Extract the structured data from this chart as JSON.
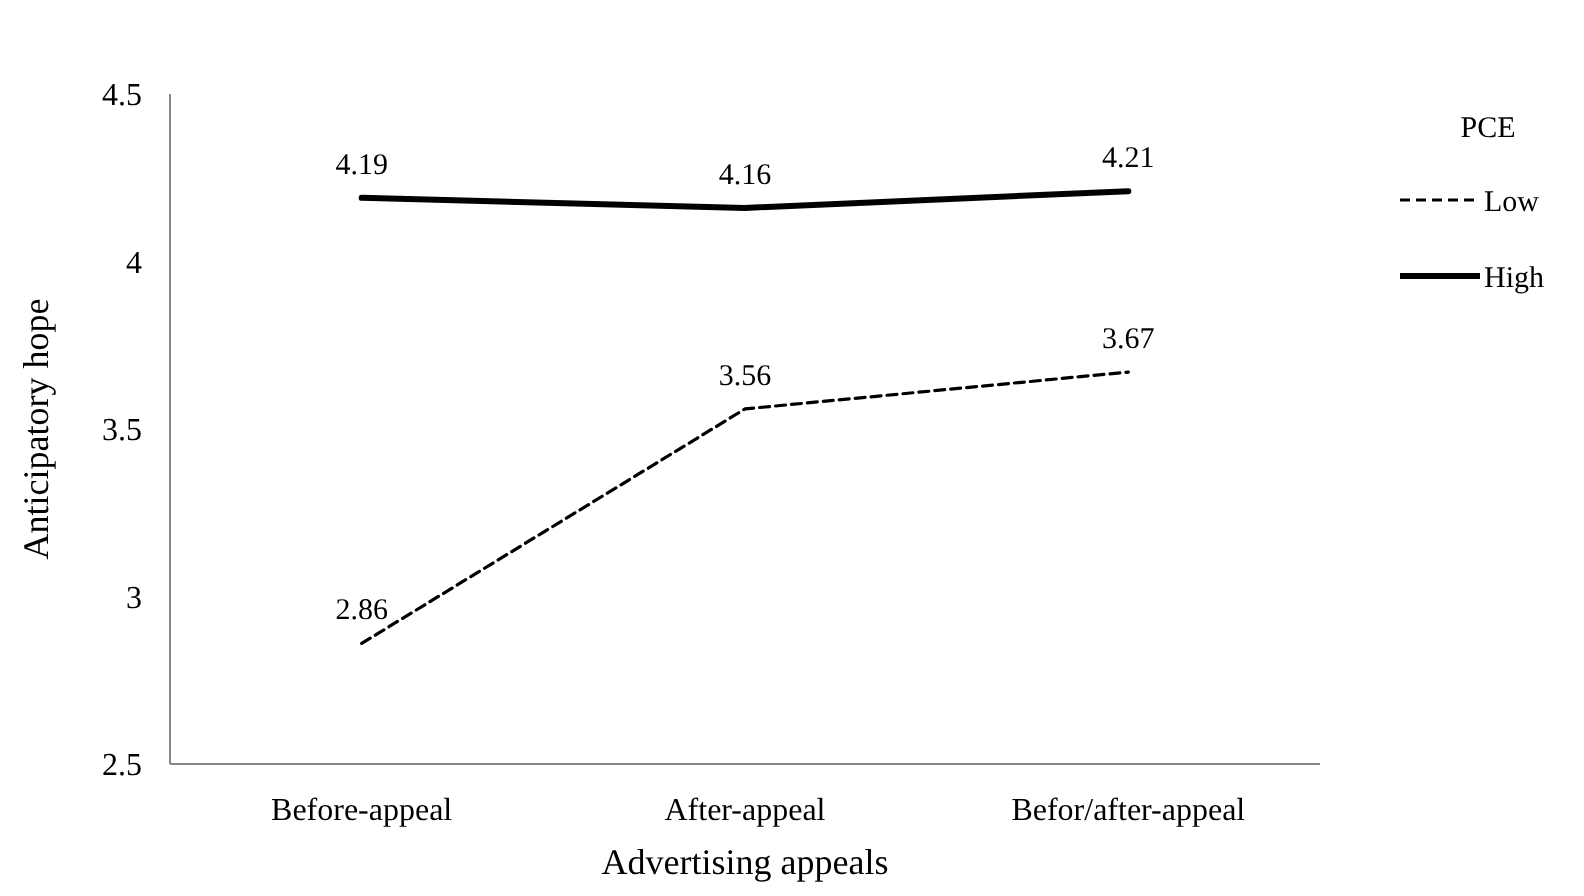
{
  "chart_data": {
    "type": "line",
    "xlabel": "Advertising appeals",
    "ylabel": "Anticipatory hope",
    "legend_title": "PCE",
    "categories": [
      "Before-appeal",
      "After-appeal",
      "Befor/after-appeal"
    ],
    "series": [
      {
        "name": "Low",
        "color": "#000000",
        "line_style": "dashed",
        "values": [
          2.86,
          3.56,
          3.67
        ]
      },
      {
        "name": "High",
        "color": "#000000",
        "line_style": "solid",
        "values": [
          4.19,
          4.16,
          4.21
        ]
      }
    ],
    "ylim": [
      2.5,
      4.5
    ],
    "yticks": [
      2.5,
      3,
      3.5,
      4,
      4.5
    ],
    "grid": false,
    "legend": "right",
    "data_labels": true,
    "marker": "none"
  }
}
